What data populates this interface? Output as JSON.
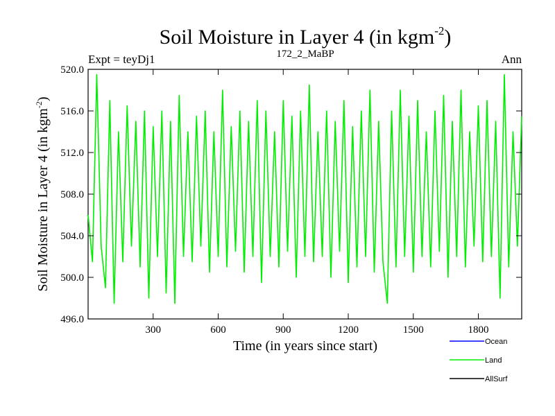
{
  "chart_data": {
    "type": "line",
    "title_main": "Soil Moisture in Layer 4 (in kgm",
    "title_sup": "-2",
    "title_end": ")",
    "subtitle_left": "Expt = teyDj1",
    "subtitle_center": "172_2_MaBP",
    "subtitle_right": "Ann",
    "xlabel": "Time (in years since start)",
    "ylabel_main": "Soil Moisture in Layer 4 (in kgm",
    "ylabel_sup": "-2",
    "ylabel_end": ")",
    "xlim": [
      0,
      2000
    ],
    "ylim": [
      496.0,
      520.0
    ],
    "xticks": [
      300,
      600,
      900,
      1200,
      1500,
      1800
    ],
    "xtick_labels": [
      "300",
      "600",
      "900",
      "1200",
      "1500",
      "1800"
    ],
    "yticks": [
      496.0,
      500.0,
      504.0,
      508.0,
      512.0,
      516.0,
      520.0
    ],
    "ytick_labels": [
      "496.0",
      "500.0",
      "504.0",
      "508.0",
      "512.0",
      "516.0",
      "520.0"
    ],
    "series": [
      {
        "name": "Land",
        "color": "#00ee00",
        "x": [
          0,
          20,
          40,
          60,
          80,
          100,
          120,
          140,
          160,
          180,
          200,
          220,
          240,
          260,
          280,
          300,
          320,
          340,
          360,
          380,
          400,
          420,
          440,
          460,
          480,
          500,
          520,
          540,
          560,
          580,
          600,
          620,
          640,
          660,
          680,
          700,
          720,
          740,
          760,
          780,
          800,
          820,
          840,
          860,
          880,
          900,
          920,
          940,
          960,
          980,
          1000,
          1020,
          1040,
          1060,
          1080,
          1100,
          1120,
          1140,
          1160,
          1180,
          1200,
          1220,
          1240,
          1260,
          1280,
          1300,
          1320,
          1340,
          1360,
          1380,
          1400,
          1420,
          1440,
          1460,
          1480,
          1500,
          1520,
          1540,
          1560,
          1580,
          1600,
          1620,
          1640,
          1660,
          1680,
          1700,
          1720,
          1740,
          1760,
          1780,
          1800,
          1820,
          1840,
          1860,
          1880,
          1900,
          1920,
          1940,
          1960,
          1980,
          2000
        ],
        "values": [
          506.0,
          501.5,
          519.5,
          503.0,
          499.0,
          517.0,
          497.5,
          514.0,
          501.5,
          516.5,
          503.0,
          515.0,
          501.0,
          516.0,
          498.0,
          514.5,
          502.0,
          516.0,
          498.5,
          515.0,
          497.5,
          517.5,
          502.0,
          514.0,
          501.5,
          515.5,
          503.0,
          516.0,
          500.5,
          514.0,
          502.0,
          518.0,
          501.0,
          514.5,
          502.5,
          516.0,
          500.5,
          515.0,
          502.0,
          517.0,
          499.5,
          516.0,
          502.0,
          514.0,
          501.0,
          517.0,
          502.5,
          515.5,
          500.0,
          516.0,
          502.0,
          518.5,
          501.5,
          514.0,
          502.0,
          516.0,
          500.0,
          515.0,
          502.5,
          517.0,
          499.5,
          514.5,
          501.0,
          516.0,
          502.0,
          518.0,
          500.5,
          515.0,
          501.5,
          497.5,
          516.0,
          501.0,
          518.0,
          502.0,
          515.5,
          500.5,
          517.0,
          502.0,
          514.0,
          501.0,
          516.0,
          502.5,
          517.5,
          500.0,
          515.0,
          502.0,
          518.0,
          501.0,
          514.0,
          503.0,
          516.5,
          501.5,
          517.0,
          502.0,
          515.0,
          498.0,
          519.5,
          501.0,
          514.0,
          503.0,
          515.5
        ]
      }
    ],
    "legend_placement": "bottom-right",
    "legend": [
      {
        "label": "Ocean",
        "color": "#0000ff"
      },
      {
        "label": "Land",
        "color": "#00ee00"
      },
      {
        "label": "AllSurf",
        "color": "#000000"
      }
    ],
    "grid": false
  }
}
